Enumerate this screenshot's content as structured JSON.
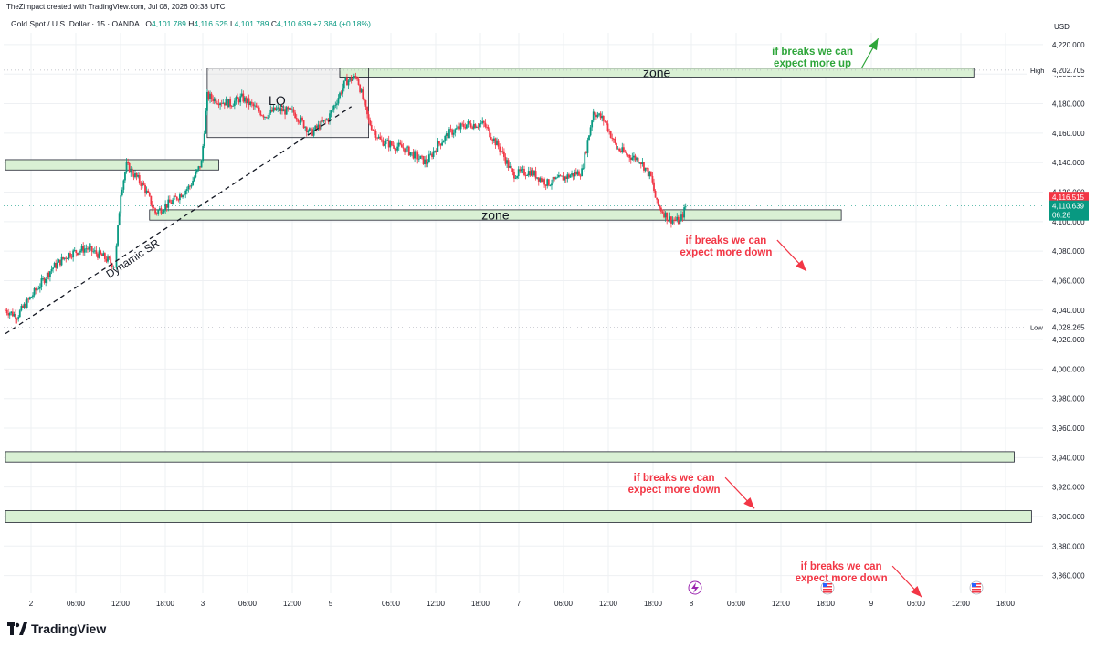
{
  "header": {
    "created_by": "TheZimpact created with TradingView.com, Jul 08, 2026 00:38 UTC"
  },
  "symbol": {
    "name": "Gold Spot / U.S. Dollar · 15 · OANDA",
    "open_label": "O",
    "open": "4,101.789",
    "high_label": "H",
    "high": "4,116.525",
    "low_label": "L",
    "low": "4,101.789",
    "close_label": "C",
    "close": "4,110.639",
    "change": "+7.384 (+0.18%)"
  },
  "footer": {
    "brand": "TradingView"
  },
  "colors": {
    "up": "#089981",
    "down": "#f23645",
    "zone_fill": "#d9f0d4",
    "green_text": "#2ea53a",
    "red_text": "#f23645",
    "grid": "#eef0f3"
  },
  "chart_data": {
    "type": "candlestick",
    "title": "Gold Spot / U.S. Dollar · 15 · OANDA",
    "currency_label": "USD",
    "ylim": [
      3848,
      4228
    ],
    "y_ticks": [
      "4,220.000",
      "4,200.000",
      "4,180.000",
      "4,160.000",
      "4,140.000",
      "4,120.000",
      "4,100.000",
      "4,080.000",
      "4,060.000",
      "4,040.000",
      "4,020.000",
      "4,000.000",
      "3,980.000",
      "3,960.000",
      "3,940.000",
      "3,920.000",
      "3,900.000",
      "3,880.000",
      "3,860.000"
    ],
    "x_ticks": [
      "2",
      "06:00",
      "12:00",
      "18:00",
      "3",
      "06:00",
      "12:00",
      "5",
      "06:00",
      "12:00",
      "18:00",
      "7",
      "06:00",
      "12:00",
      "18:00",
      "8",
      "06:00",
      "12:00",
      "18:00",
      "9",
      "06:00",
      "12:00",
      "18:00"
    ],
    "price_markers": {
      "high": {
        "label": "High",
        "value": "4,202.705"
      },
      "low": {
        "label": "Low",
        "value": "4,028.265"
      },
      "high_session": {
        "value": "4,116.515"
      },
      "last": {
        "value": "4,110.639",
        "countdown": "06:26"
      }
    },
    "close_path": [
      {
        "t": 0,
        "v": 4040
      },
      {
        "t": 2,
        "v": 4036
      },
      {
        "t": 5,
        "v": 4052
      },
      {
        "t": 8,
        "v": 4068
      },
      {
        "t": 11,
        "v": 4078
      },
      {
        "t": 14,
        "v": 4082
      },
      {
        "t": 17,
        "v": 4076
      },
      {
        "t": 19,
        "v": 4070
      },
      {
        "t": 20,
        "v": 4120
      },
      {
        "t": 21,
        "v": 4138
      },
      {
        "t": 24,
        "v": 4124
      },
      {
        "t": 26,
        "v": 4106
      },
      {
        "t": 29,
        "v": 4114
      },
      {
        "t": 32,
        "v": 4124
      },
      {
        "t": 34,
        "v": 4140
      },
      {
        "t": 35,
        "v": 4185
      },
      {
        "t": 37,
        "v": 4182
      },
      {
        "t": 39,
        "v": 4180
      },
      {
        "t": 41,
        "v": 4184
      },
      {
        "t": 43,
        "v": 4178
      },
      {
        "t": 45,
        "v": 4172
      },
      {
        "t": 47,
        "v": 4176
      },
      {
        "t": 50,
        "v": 4174
      },
      {
        "t": 53,
        "v": 4160
      },
      {
        "t": 56,
        "v": 4170
      },
      {
        "t": 59,
        "v": 4195
      },
      {
        "t": 61,
        "v": 4198
      },
      {
        "t": 63,
        "v": 4168
      },
      {
        "t": 65,
        "v": 4155
      },
      {
        "t": 67,
        "v": 4152
      },
      {
        "t": 69,
        "v": 4150
      },
      {
        "t": 71,
        "v": 4145
      },
      {
        "t": 73,
        "v": 4140
      },
      {
        "t": 75,
        "v": 4152
      },
      {
        "t": 77,
        "v": 4160
      },
      {
        "t": 80,
        "v": 4166
      },
      {
        "t": 83,
        "v": 4166
      },
      {
        "t": 86,
        "v": 4148
      },
      {
        "t": 88,
        "v": 4132
      },
      {
        "t": 91,
        "v": 4134
      },
      {
        "t": 94,
        "v": 4126
      },
      {
        "t": 97,
        "v": 4130
      },
      {
        "t": 100,
        "v": 4134
      },
      {
        "t": 102,
        "v": 4175
      },
      {
        "t": 104,
        "v": 4168
      },
      {
        "t": 106,
        "v": 4150
      },
      {
        "t": 108,
        "v": 4145
      },
      {
        "t": 110,
        "v": 4142
      },
      {
        "t": 112,
        "v": 4130
      },
      {
        "t": 113,
        "v": 4112
      },
      {
        "t": 115,
        "v": 4102
      },
      {
        "t": 117,
        "v": 4100
      },
      {
        "t": 118,
        "v": 4110
      }
    ],
    "zones": [
      {
        "label": "",
        "top": 4142,
        "bottom": 4135,
        "t_start": 0,
        "t_end": 37
      },
      {
        "label": "zone",
        "top": 4204,
        "bottom": 4198,
        "t_start": 58,
        "t_end": 168
      },
      {
        "label": "zone",
        "top": 4108,
        "bottom": 4101,
        "t_start": 25,
        "t_end": 145
      },
      {
        "label": "",
        "top": 3944,
        "bottom": 3937,
        "t_start": 0,
        "t_end": 175
      },
      {
        "label": "",
        "top": 3904,
        "bottom": 3896,
        "t_start": 0,
        "t_end": 178
      }
    ],
    "liquidity_box": {
      "label": "LQ",
      "top": 4204,
      "bottom": 4157,
      "t_start": 35,
      "t_end": 63
    },
    "liquidity_box_inner": {
      "top": 4204,
      "bottom": 4198,
      "t_start": 58,
      "t_end": 63
    },
    "trendline": {
      "label": "Dynamic SR",
      "t1": 0,
      "v1": 4024,
      "t2": 60,
      "v2": 4178
    },
    "annotations": [
      {
        "text": [
          "if breaks we can",
          "expect more up"
        ],
        "color": "green",
        "anchor_t": 140,
        "anchor_v": 4213,
        "arrow": "up"
      },
      {
        "text": [
          "if breaks we can",
          "expect more down"
        ],
        "color": "red",
        "anchor_t": 125,
        "anchor_v": 4085,
        "arrow": "down"
      },
      {
        "text": [
          "if breaks we can",
          "expect more down"
        ],
        "color": "red",
        "anchor_t": 116,
        "anchor_v": 3924,
        "arrow": "down"
      },
      {
        "text": [
          "if breaks we can",
          "expect more down"
        ],
        "color": "red",
        "anchor_t": 145,
        "anchor_v": 3864,
        "arrow": "down"
      }
    ]
  }
}
